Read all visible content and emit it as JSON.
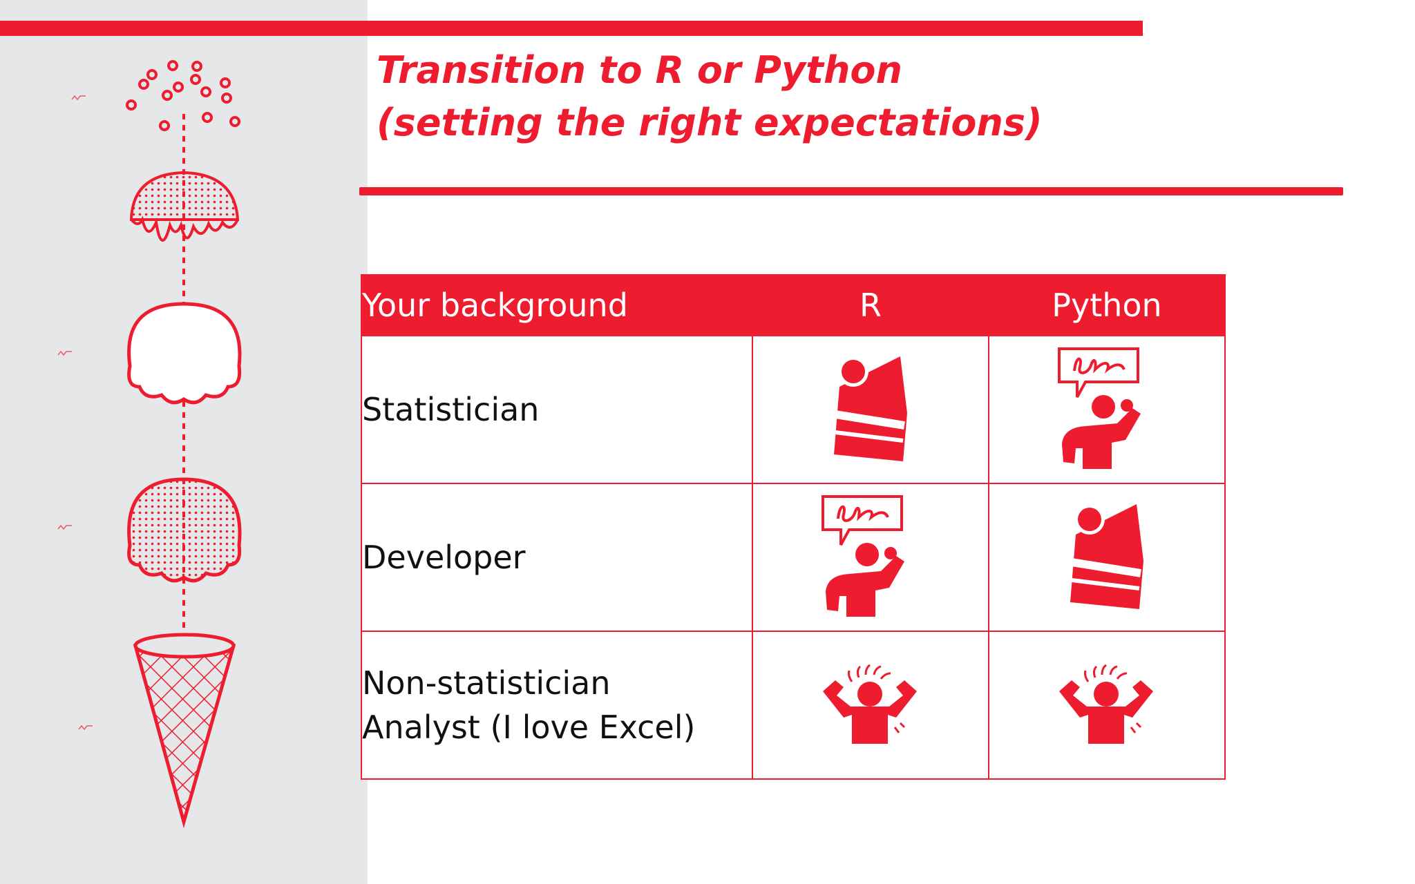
{
  "slide": {
    "title_line1": "Transition to R or Python",
    "title_line2": "(setting the right expectations)"
  },
  "table": {
    "headers": [
      "Your background",
      "R",
      "Python"
    ],
    "rows": [
      {
        "background": [
          "Statistician"
        ],
        "r": "cake-icon",
        "python": "thinking-person-icon"
      },
      {
        "background": [
          "Developer"
        ],
        "r": "thinking-person-icon",
        "python": "cake-icon"
      },
      {
        "background": [
          "Non-statistician",
          "Analyst (I love Excel)"
        ],
        "r": "frustrated-person-icon",
        "python": "frustrated-person-icon"
      }
    ]
  },
  "decoration": {
    "illustration": "ice-cream-cone-exploded-illustration",
    "accent_color": "#ed1c2e",
    "side_panel_color": "#e6e7e8"
  }
}
